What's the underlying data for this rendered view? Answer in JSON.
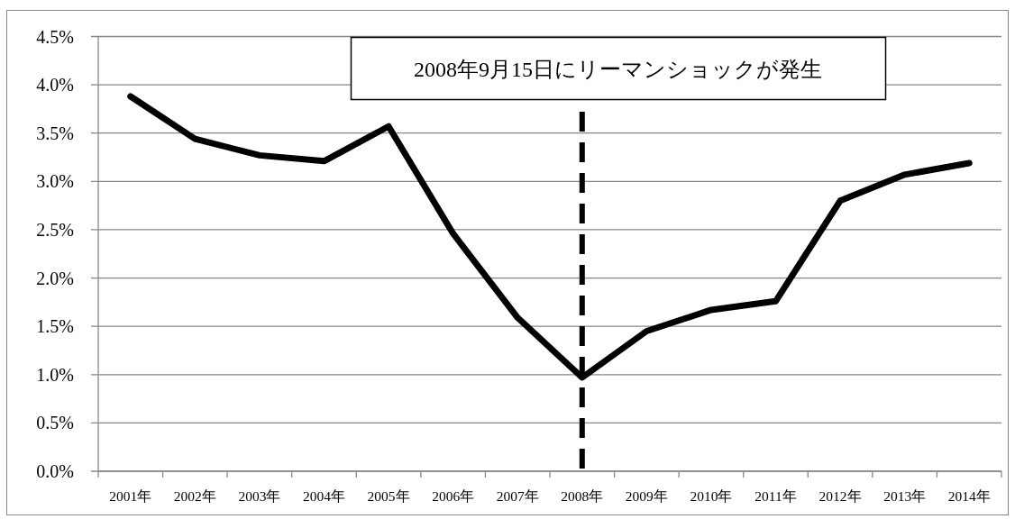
{
  "chart_data": {
    "type": "line",
    "categories": [
      "2001年",
      "2002年",
      "2003年",
      "2004年",
      "2005年",
      "2006年",
      "2007年",
      "2008年",
      "2009年",
      "2010年",
      "2011年",
      "2012年",
      "2013年",
      "2014年"
    ],
    "series": [
      {
        "color": "#000000",
        "values": [
          3.88,
          3.44,
          3.27,
          3.21,
          3.57,
          2.46,
          1.59,
          0.97,
          1.45,
          1.67,
          1.76,
          2.8,
          3.07,
          3.19
        ]
      }
    ],
    "ylim": [
      0,
      4.5
    ],
    "yticks": [
      {
        "value": 0,
        "label": "0.0%"
      },
      {
        "value": 0.5,
        "label": "0.5%"
      },
      {
        "value": 1,
        "label": "1.0%"
      },
      {
        "value": 1.5,
        "label": "1.5%"
      },
      {
        "value": 2,
        "label": "2.0%"
      },
      {
        "value": 2.5,
        "label": "2.5%"
      },
      {
        "value": 3,
        "label": "3.0%"
      },
      {
        "value": 3.5,
        "label": "3.5%"
      },
      {
        "value": 4,
        "label": "4.0%"
      },
      {
        "value": 4.5,
        "label": "4.5%"
      }
    ],
    "grid": "y",
    "ref_lines": [
      {
        "axis": "x",
        "value": "2008年",
        "color": "#000000",
        "line_style": "dashed"
      }
    ],
    "annotations": [
      "2008年9月15日にリーマンショックが発生"
    ],
    "marker": "none",
    "line_style": "solid"
  }
}
